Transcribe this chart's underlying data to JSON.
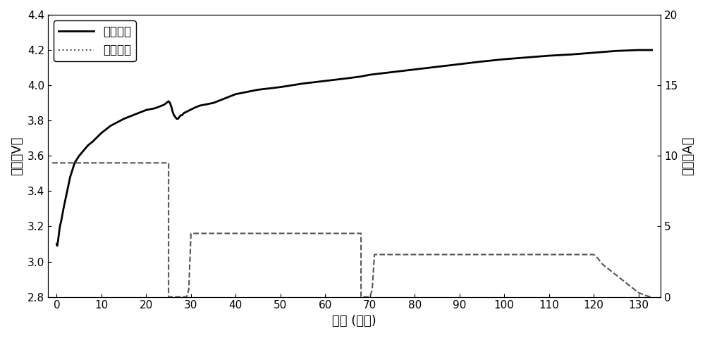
{
  "voltage_x": [
    0,
    0.1,
    0.3,
    0.5,
    0.7,
    1,
    1.5,
    2,
    2.5,
    3,
    4,
    5,
    6,
    7,
    8,
    10,
    12,
    15,
    18,
    20,
    22,
    24,
    25,
    25.3,
    25.6,
    25.9,
    26.2,
    26.5,
    26.8,
    27.1,
    27.4,
    27.7,
    28.0,
    28.3,
    28.6,
    29.0,
    29.4,
    29.8,
    30.2,
    30.6,
    31,
    32,
    35,
    38,
    40,
    45,
    50,
    55,
    60,
    65,
    68,
    70,
    75,
    80,
    85,
    90,
    95,
    100,
    105,
    110,
    115,
    120,
    125,
    130,
    133
  ],
  "voltage_y": [
    3.1,
    3.09,
    3.12,
    3.16,
    3.2,
    3.23,
    3.3,
    3.36,
    3.42,
    3.48,
    3.56,
    3.6,
    3.63,
    3.66,
    3.68,
    3.73,
    3.77,
    3.81,
    3.84,
    3.86,
    3.87,
    3.89,
    3.91,
    3.9,
    3.88,
    3.85,
    3.83,
    3.82,
    3.81,
    3.81,
    3.82,
    3.83,
    3.83,
    3.84,
    3.845,
    3.85,
    3.855,
    3.86,
    3.865,
    3.87,
    3.875,
    3.885,
    3.9,
    3.93,
    3.95,
    3.975,
    3.99,
    4.01,
    4.025,
    4.04,
    4.05,
    4.06,
    4.075,
    4.09,
    4.105,
    4.12,
    4.135,
    4.148,
    4.158,
    4.168,
    4.175,
    4.185,
    4.195,
    4.2,
    4.2
  ],
  "current_x": [
    -1,
    0,
    0,
    25,
    25,
    25.5,
    26,
    26.5,
    27,
    27.5,
    28,
    28.5,
    29.0,
    29.5,
    30,
    30.5,
    31,
    68,
    68,
    68.5,
    69,
    69.5,
    70,
    70.5,
    71,
    120,
    121,
    122,
    124,
    126,
    128,
    130,
    132,
    133
  ],
  "current_y": [
    9.5,
    9.5,
    9.5,
    9.5,
    0.0,
    0.0,
    0.0,
    0.0,
    0.0,
    0.0,
    0.0,
    0.0,
    0.0,
    0.5,
    4.5,
    4.5,
    4.5,
    4.5,
    0.0,
    0.0,
    0.0,
    0.0,
    0.0,
    0.5,
    3.0,
    3.0,
    2.7,
    2.3,
    1.8,
    1.3,
    0.8,
    0.3,
    0.05,
    0.0
  ],
  "voltage_color": "#000000",
  "current_color": "#555555",
  "voltage_lw": 2.0,
  "current_lw": 1.5,
  "xlabel": "时间 (分钟)",
  "ylabel_left": "电压（V）",
  "ylabel_right": "电流（A）",
  "legend_voltage": "充电电压",
  "legend_current": "充电电流",
  "xlim": [
    -2,
    135
  ],
  "ylim_left": [
    2.8,
    4.4
  ],
  "ylim_right": [
    0,
    20
  ],
  "xticks": [
    0,
    10,
    20,
    30,
    40,
    50,
    60,
    70,
    80,
    90,
    100,
    110,
    120,
    130
  ],
  "yticks_left": [
    2.8,
    3.0,
    3.2,
    3.4,
    3.6,
    3.8,
    4.0,
    4.2,
    4.4
  ],
  "yticks_right": [
    0,
    5,
    10,
    15,
    20
  ],
  "bg_color": "#ffffff",
  "figsize": [
    10,
    4.8
  ],
  "dpi": 100,
  "font_size_ticks": 11,
  "font_size_label": 13,
  "font_size_legend": 12
}
